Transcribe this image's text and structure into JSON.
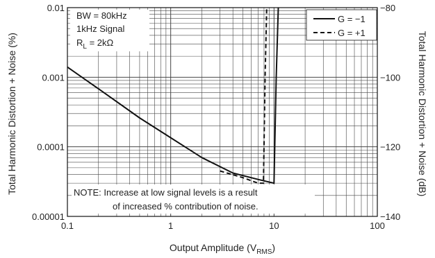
{
  "chart_data": {
    "type": "line",
    "x_axis": {
      "label_main": "Output Amplitude (V",
      "label_sub": "RMS",
      "label_close": ")",
      "scale": "log",
      "range": [
        0.1,
        100
      ],
      "tick_labels": [
        "0.1",
        "1",
        "10",
        "100"
      ]
    },
    "y_axis_left": {
      "label": "Total Harmonic Distortion + Noise (%)",
      "scale": "log",
      "range": [
        1e-05,
        0.01
      ],
      "tick_labels": [
        "0.00001",
        "0.0001",
        "0.001",
        "0.01"
      ]
    },
    "y_axis_right": {
      "label": "Total Harmonic Distortion + Noise (dB)",
      "scale": "linear",
      "range": [
        -140,
        -80
      ],
      "tick_labels": [
        "−140",
        "−120",
        "−100",
        "−80"
      ]
    },
    "grid": true,
    "legend_position": "top-right",
    "conditions": {
      "line1": "BW = 80kHz",
      "line2": "1kHz Signal",
      "line3_main": "R",
      "line3_sub": "L",
      "line3_rest": " = 2kΩ"
    },
    "note": {
      "line1": "NOTE: Increase at low signal levels is a result",
      "line2": "of increased % contribution of noise."
    },
    "series": [
      {
        "name": "G = −1",
        "style": "solid",
        "color": "#111111",
        "points": [
          [
            0.1,
            0.0014
          ],
          [
            0.2,
            0.00068
          ],
          [
            0.5,
            0.00026
          ],
          [
            1,
            0.000135
          ],
          [
            2,
            7e-05
          ],
          [
            4,
            4.2e-05
          ],
          [
            7,
            3.4e-05
          ],
          [
            10,
            3e-05
          ],
          [
            10.5,
            0.001
          ],
          [
            11,
            0.01
          ]
        ]
      },
      {
        "name": "G = +1",
        "style": "dashed",
        "color": "#111111",
        "points": [
          [
            3,
            4.5e-05
          ],
          [
            5,
            3.6e-05
          ],
          [
            7,
            3e-05
          ],
          [
            7.9,
            3e-05
          ],
          [
            8.2,
            0.001
          ],
          [
            8.5,
            0.01
          ]
        ]
      }
    ]
  }
}
